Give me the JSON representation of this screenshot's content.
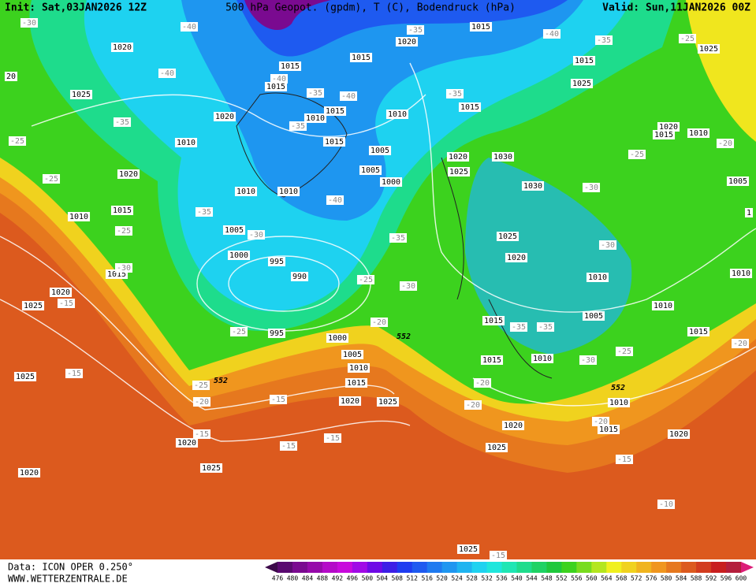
{
  "header": {
    "init": "Init: Sat,03JAN2026 12Z",
    "title": "500 hPa Geopot. (gpdm), T (C), Bodendruck (hPa)",
    "valid": "Valid: Sun,11JAN2026 00Z"
  },
  "footer": {
    "source": "Data: ICON OPER 0.250°",
    "site": "WWW.WETTERZENTRALE.DE"
  },
  "colorbar": {
    "labels": [
      476,
      480,
      484,
      488,
      492,
      496,
      500,
      504,
      508,
      512,
      516,
      520,
      524,
      528,
      532,
      536,
      540,
      544,
      548,
      552,
      556,
      560,
      564,
      568,
      572,
      576,
      580,
      584,
      588,
      592,
      596,
      600
    ],
    "colors": [
      "#3c0a4a",
      "#5a0a70",
      "#7a0a90",
      "#960aaa",
      "#b40ac8",
      "#c80adc",
      "#a00ae6",
      "#6e0ae6",
      "#3c1ee6",
      "#1e3cf0",
      "#1e5af0",
      "#1e7af0",
      "#1e96f0",
      "#1eb4f0",
      "#1ed2f0",
      "#1ee6dc",
      "#1ee6b4",
      "#1edc8c",
      "#1ed264",
      "#1ec83c",
      "#3cd21e",
      "#78dc1e",
      "#b4e61e",
      "#f0f01e",
      "#f0d21e",
      "#f0b41e",
      "#f0961e",
      "#e6781e",
      "#dc5a1e",
      "#d23c1e",
      "#c81e1e",
      "#b41e3c",
      "#dc1e78"
    ]
  },
  "isobar_labels": [
    1020,
    1025,
    1010,
    1020,
    1010,
    1015,
    1015,
    1020,
    1025,
    1025,
    1020,
    1020,
    1025,
    1015,
    1015,
    1020,
    1010,
    1015,
    1015,
    1010,
    1010,
    1005,
    1000,
    995,
    990,
    995,
    1000,
    1005,
    1010,
    1015,
    1020,
    1025,
    1010,
    1005,
    1005,
    1000,
    1020,
    1015,
    1015,
    1015,
    1020,
    1025,
    1030,
    1030,
    1025,
    1020,
    1015,
    1015,
    1010,
    1020,
    1025,
    1010,
    1005,
    1010,
    1015,
    1010,
    1015,
    1020,
    1015,
    1025,
    1020,
    1015,
    1010,
    1025,
    1005,
    1025,
    1010,
    1,
    20
  ],
  "temperature_labels": [
    -30,
    -40,
    -40,
    -35,
    -25,
    -25,
    -25,
    -30,
    -15,
    -15,
    -25,
    -20,
    -15,
    -15,
    -15,
    -15,
    -35,
    -30,
    -25,
    -25,
    -20,
    -30,
    -35,
    -35,
    -35,
    -40,
    -40,
    -40,
    -35,
    -35,
    -40,
    -35,
    -25,
    -25,
    -20,
    -30,
    -30,
    -35,
    -35,
    -25,
    -30,
    -20,
    -20,
    -20,
    -20,
    -15,
    -10,
    -15
  ],
  "height_labels": [
    552,
    552,
    552
  ]
}
